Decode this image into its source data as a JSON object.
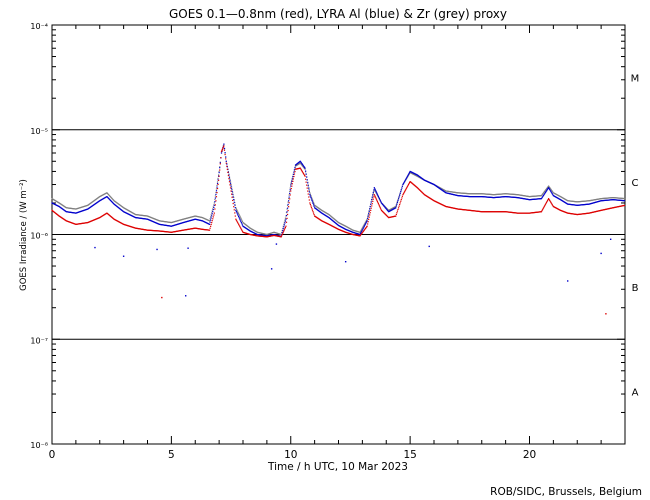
{
  "chart_data": {
    "type": "scatter",
    "title": "GOES 0.1—0.8nm (red), LYRA Al (blue) & Zr (grey) proxy",
    "xlabel": "Time / h UTC, 10 Mar 2023",
    "ylabel": "GOES Irradiance / (W m⁻²)",
    "credit": "ROB/SIDC, Brussels, Belgium",
    "xlim": [
      0,
      24
    ],
    "ylim": [
      1e-08,
      0.0001
    ],
    "yscale": "log",
    "xticks": [
      {
        "value": 0,
        "label": "0"
      },
      {
        "value": 5,
        "label": "5"
      },
      {
        "value": 10,
        "label": "10"
      },
      {
        "value": 15,
        "label": "15"
      },
      {
        "value": 20,
        "label": "20"
      }
    ],
    "yticks": [
      {
        "value": 1e-08,
        "label": "10⁻⁸"
      },
      {
        "value": 1e-07,
        "label": "10⁻⁷"
      },
      {
        "value": 1e-06,
        "label": "10⁻⁶"
      },
      {
        "value": 1e-05,
        "label": "10⁻⁵"
      },
      {
        "value": 0.0001,
        "label": "10⁻⁴"
      }
    ],
    "class_lines": [
      1e-07,
      1e-06,
      1e-05
    ],
    "flare_classes": [
      {
        "label": "A",
        "value": 3.16e-08
      },
      {
        "label": "B",
        "value": 3.16e-07
      },
      {
        "label": "C",
        "value": 3.16e-06
      },
      {
        "label": "M",
        "value": 3.16e-05
      }
    ],
    "series": [
      {
        "color": "#808080",
        "x": [
          0,
          0.3,
          0.6,
          1,
          1.5,
          2,
          2.3,
          2.6,
          3,
          3.5,
          4,
          4.5,
          5,
          5.5,
          6,
          6.3,
          6.6,
          6.8,
          7,
          7.1,
          7.2,
          7.3,
          7.5,
          7.7,
          8,
          8.3,
          8.6,
          9,
          9.3,
          9.6,
          9.8,
          10,
          10.2,
          10.4,
          10.6,
          10.8,
          11,
          11.3,
          11.6,
          12,
          12.3,
          12.6,
          12.9,
          13.2,
          13.5,
          13.8,
          14.1,
          14.4,
          14.7,
          15,
          15.3,
          15.6,
          16,
          16.5,
          17,
          17.5,
          18,
          18.5,
          19,
          19.5,
          20,
          20.5,
          20.8,
          21,
          21.3,
          21.6,
          22,
          22.5,
          23,
          23.5,
          24
        ],
        "y": [
          2.2e-06,
          2e-06,
          1.8e-06,
          1.75e-06,
          1.9e-06,
          2.3e-06,
          2.5e-06,
          2.1e-06,
          1.8e-06,
          1.55e-06,
          1.5e-06,
          1.35e-06,
          1.3e-06,
          1.4e-06,
          1.5e-06,
          1.45e-06,
          1.35e-06,
          2e-06,
          4e-06,
          6e-06,
          7.2e-06,
          5e-06,
          3e-06,
          1.8e-06,
          1.3e-06,
          1.15e-06,
          1.05e-06,
          1e-06,
          1.05e-06,
          1e-06,
          1.5e-06,
          3e-06,
          4.5e-06,
          4.8e-06,
          4.2e-06,
          2.5e-06,
          1.9e-06,
          1.7e-06,
          1.55e-06,
          1.3e-06,
          1.2e-06,
          1.1e-06,
          1.05e-06,
          1.4e-06,
          2.7e-06,
          2e-06,
          1.7e-06,
          1.85e-06,
          3e-06,
          3.9e-06,
          3.6e-06,
          3.3e-06,
          3e-06,
          2.6e-06,
          2.5e-06,
          2.45e-06,
          2.45e-06,
          2.4e-06,
          2.45e-06,
          2.4e-06,
          2.3e-06,
          2.35e-06,
          2.9e-06,
          2.5e-06,
          2.3e-06,
          2.1e-06,
          2.05e-06,
          2.1e-06,
          2.2e-06,
          2.25e-06,
          2.2e-06
        ]
      },
      {
        "color": "#0000cc",
        "x": [
          0,
          0.3,
          0.6,
          1,
          1.5,
          2,
          2.3,
          2.6,
          3,
          3.5,
          4,
          4.5,
          5,
          5.5,
          6,
          6.3,
          6.6,
          6.8,
          7,
          7.1,
          7.2,
          7.3,
          7.5,
          7.7,
          8,
          8.3,
          8.6,
          9,
          9.3,
          9.6,
          9.8,
          10,
          10.2,
          10.4,
          10.6,
          10.8,
          11,
          11.3,
          11.6,
          12,
          12.3,
          12.6,
          12.9,
          13.2,
          13.5,
          13.8,
          14.1,
          14.4,
          14.7,
          15,
          15.3,
          15.6,
          16,
          16.5,
          17,
          17.5,
          18,
          18.5,
          19,
          19.5,
          20,
          20.5,
          20.8,
          21,
          21.3,
          21.6,
          22,
          22.5,
          23,
          23.5,
          24
        ],
        "y": [
          2e-06,
          1.85e-06,
          1.65e-06,
          1.6e-06,
          1.75e-06,
          2.1e-06,
          2.3e-06,
          1.95e-06,
          1.65e-06,
          1.45e-06,
          1.4e-06,
          1.25e-06,
          1.2e-06,
          1.3e-06,
          1.4e-06,
          1.35e-06,
          1.25e-06,
          1.9e-06,
          3.9e-06,
          6e-06,
          7.3e-06,
          5e-06,
          2.9e-06,
          1.7e-06,
          1.2e-06,
          1.08e-06,
          1e-06,
          9.7e-07,
          1e-06,
          9.6e-07,
          1.4e-06,
          2.9e-06,
          4.6e-06,
          5e-06,
          4.3e-06,
          2.4e-06,
          1.8e-06,
          1.6e-06,
          1.45e-06,
          1.22e-06,
          1.12e-06,
          1.05e-06,
          1e-06,
          1.35e-06,
          2.8e-06,
          2e-06,
          1.65e-06,
          1.8e-06,
          3e-06,
          4e-06,
          3.7e-06,
          3.3e-06,
          3e-06,
          2.5e-06,
          2.35e-06,
          2.3e-06,
          2.3e-06,
          2.25e-06,
          2.3e-06,
          2.25e-06,
          2.15e-06,
          2.2e-06,
          2.8e-06,
          2.35e-06,
          2.15e-06,
          1.95e-06,
          1.9e-06,
          1.95e-06,
          2.1e-06,
          2.15e-06,
          2.1e-06
        ]
      },
      {
        "color": "#dd0000",
        "x": [
          0,
          0.3,
          0.6,
          1,
          1.5,
          2,
          2.3,
          2.6,
          3,
          3.5,
          4,
          4.5,
          5,
          5.5,
          6,
          6.3,
          6.6,
          6.8,
          7,
          7.1,
          7.2,
          7.3,
          7.5,
          7.7,
          8,
          8.3,
          8.6,
          9,
          9.3,
          9.6,
          9.8,
          10,
          10.2,
          10.4,
          10.6,
          10.8,
          11,
          11.3,
          11.6,
          12,
          12.3,
          12.6,
          12.9,
          13.2,
          13.5,
          13.8,
          14.1,
          14.4,
          14.7,
          15,
          15.3,
          15.6,
          16,
          16.5,
          17,
          17.5,
          18,
          18.5,
          19,
          19.5,
          20,
          20.5,
          20.8,
          21,
          21.3,
          21.6,
          22,
          22.5,
          23,
          23.5,
          24
        ],
        "y": [
          1.7e-06,
          1.5e-06,
          1.35e-06,
          1.25e-06,
          1.3e-06,
          1.45e-06,
          1.6e-06,
          1.4e-06,
          1.25e-06,
          1.15e-06,
          1.1e-06,
          1.08e-06,
          1.05e-06,
          1.1e-06,
          1.15e-06,
          1.12e-06,
          1.1e-06,
          1.6e-06,
          3.6e-06,
          6.2e-06,
          7e-06,
          4.8e-06,
          2.6e-06,
          1.4e-06,
          1.05e-06,
          1e-06,
          9.7e-07,
          9.5e-07,
          9.8e-07,
          9.5e-07,
          1.2e-06,
          2.6e-06,
          4.2e-06,
          4.3e-06,
          3.6e-06,
          2e-06,
          1.5e-06,
          1.35e-06,
          1.25e-06,
          1.12e-06,
          1.05e-06,
          1e-06,
          9.7e-07,
          1.2e-06,
          2.4e-06,
          1.7e-06,
          1.45e-06,
          1.5e-06,
          2.4e-06,
          3.2e-06,
          2.8e-06,
          2.4e-06,
          2.1e-06,
          1.85e-06,
          1.75e-06,
          1.7e-06,
          1.65e-06,
          1.65e-06,
          1.65e-06,
          1.6e-06,
          1.6e-06,
          1.65e-06,
          2.2e-06,
          1.85e-06,
          1.7e-06,
          1.6e-06,
          1.55e-06,
          1.6e-06,
          1.7e-06,
          1.8e-06,
          1.9e-06
        ]
      }
    ],
    "outliers": [
      {
        "x": 1.8,
        "y": 7.5e-07,
        "color": "#0000cc"
      },
      {
        "x": 3.0,
        "y": 6.2e-07,
        "color": "#0000cc"
      },
      {
        "x": 4.6,
        "y": 2.5e-07,
        "color": "#dd0000"
      },
      {
        "x": 4.4,
        "y": 7.2e-07,
        "color": "#0000cc"
      },
      {
        "x": 5.6,
        "y": 2.6e-07,
        "color": "#0000cc"
      },
      {
        "x": 5.7,
        "y": 7.4e-07,
        "color": "#0000cc"
      },
      {
        "x": 9.2,
        "y": 4.7e-07,
        "color": "#0000cc"
      },
      {
        "x": 9.4,
        "y": 8.1e-07,
        "color": "#0000cc"
      },
      {
        "x": 12.3,
        "y": 5.5e-07,
        "color": "#0000cc"
      },
      {
        "x": 15.8,
        "y": 7.7e-07,
        "color": "#0000cc"
      },
      {
        "x": 21.6,
        "y": 3.6e-07,
        "color": "#0000cc"
      },
      {
        "x": 23.0,
        "y": 6.6e-07,
        "color": "#0000cc"
      },
      {
        "x": 23.2,
        "y": 1.75e-07,
        "color": "#dd0000"
      },
      {
        "x": 23.4,
        "y": 9e-07,
        "color": "#0000cc"
      }
    ]
  }
}
